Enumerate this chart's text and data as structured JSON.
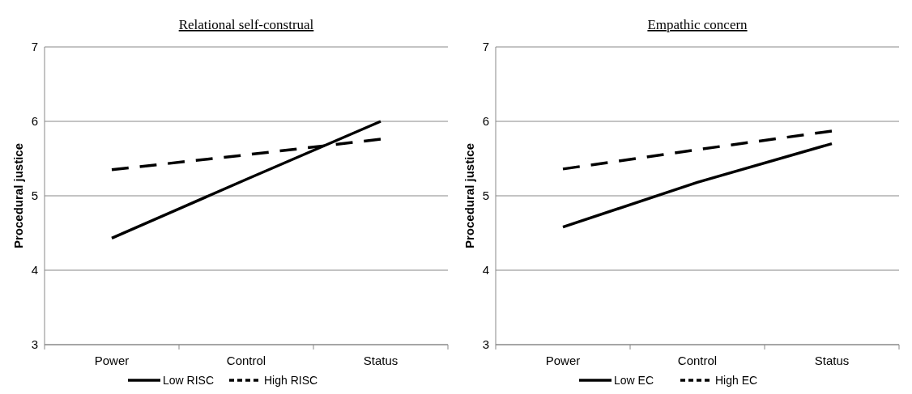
{
  "chart_data": [
    {
      "type": "line",
      "title": "Relational self-construal",
      "ylabel": "Procedural  justice",
      "categories": [
        "Power",
        "Control",
        "Status"
      ],
      "ylim": [
        3,
        7
      ],
      "yticks": [
        3,
        4,
        5,
        6,
        7
      ],
      "grid": "y",
      "legend": "bottom",
      "marker": "none",
      "series": [
        {
          "name": "Low RISC",
          "color": "#000000",
          "line_style": "solid",
          "values": [
            4.43,
            5.22,
            6.0
          ]
        },
        {
          "name": "High RISC",
          "color": "#000000",
          "line_style": "dashed",
          "values": [
            5.35,
            5.55,
            5.76
          ]
        }
      ]
    },
    {
      "type": "line",
      "title": "Empathic concern",
      "ylabel": "Procedural  justice",
      "categories": [
        "Power",
        "Control",
        "Status"
      ],
      "ylim": [
        3,
        7
      ],
      "yticks": [
        3,
        4,
        5,
        6,
        7
      ],
      "grid": "y",
      "legend": "bottom",
      "marker": "none",
      "series": [
        {
          "name": "Low EC",
          "color": "#000000",
          "line_style": "solid",
          "values": [
            4.58,
            5.18,
            5.7
          ]
        },
        {
          "name": "High EC",
          "color": "#000000",
          "line_style": "dashed",
          "values": [
            5.36,
            5.62,
            5.87
          ]
        }
      ]
    }
  ]
}
